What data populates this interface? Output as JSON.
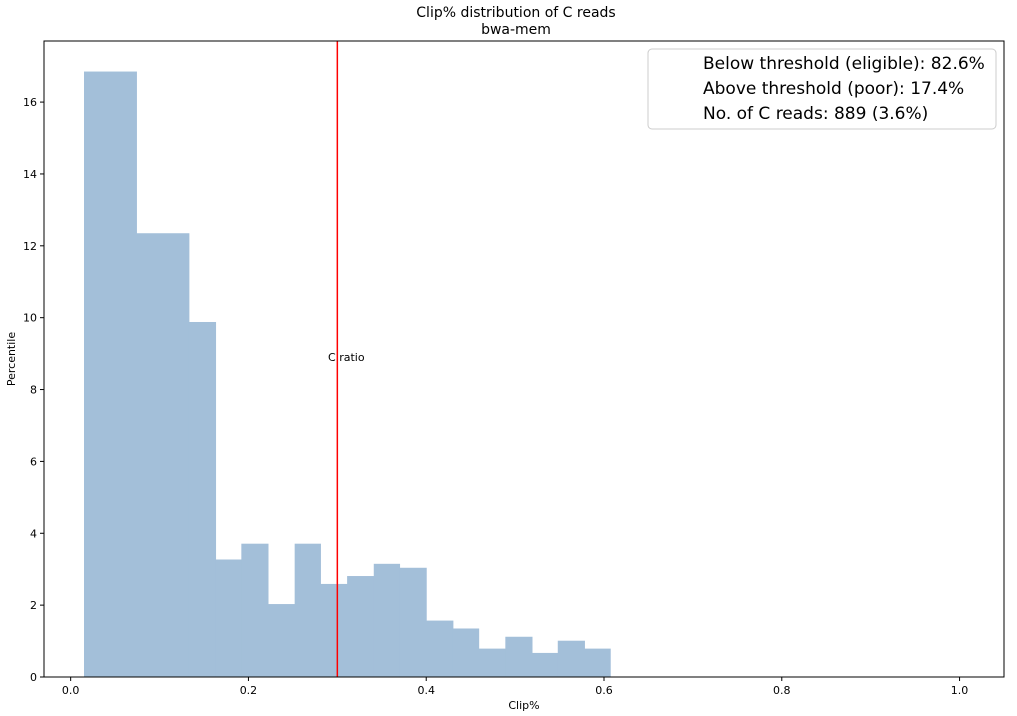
{
  "chart_data": {
    "type": "bar",
    "title": "Clip% distribution of C reads",
    "subtitle": "bwa-mem",
    "xlabel": "Clip%",
    "ylabel": "Percentile",
    "xlim": [
      -0.03,
      1.05
    ],
    "ylim": [
      0,
      17.7
    ],
    "xticks": [
      0.0,
      0.2,
      0.4,
      0.6,
      0.8,
      1.0
    ],
    "xtick_labels": [
      "0.0",
      "0.2",
      "0.4",
      "0.6",
      "0.8",
      "1.0"
    ],
    "yticks": [
      0,
      2,
      4,
      6,
      8,
      10,
      12,
      14,
      16
    ],
    "ytick_labels": [
      "0",
      "2",
      "4",
      "6",
      "8",
      "10",
      "12",
      "14",
      "16"
    ],
    "bar_color": "#a3bfd9",
    "bins": [
      {
        "x0": 0.015,
        "x1": 0.074,
        "value": 16.85
      },
      {
        "x0": 0.074,
        "x1": 0.133,
        "value": 12.35
      },
      {
        "x0": 0.133,
        "x1": 0.163,
        "value": 9.88
      },
      {
        "x0": 0.163,
        "x1": 0.192,
        "value": 3.27
      },
      {
        "x0": 0.192,
        "x1": 0.222,
        "value": 3.71
      },
      {
        "x0": 0.222,
        "x1": 0.252,
        "value": 2.03
      },
      {
        "x0": 0.252,
        "x1": 0.281,
        "value": 3.71
      },
      {
        "x0": 0.281,
        "x1": 0.311,
        "value": 2.59
      },
      {
        "x0": 0.311,
        "x1": 0.341,
        "value": 2.81
      },
      {
        "x0": 0.341,
        "x1": 0.37,
        "value": 3.15
      },
      {
        "x0": 0.37,
        "x1": 0.4,
        "value": 3.04
      },
      {
        "x0": 0.4,
        "x1": 0.43,
        "value": 1.57
      },
      {
        "x0": 0.43,
        "x1": 0.459,
        "value": 1.35
      },
      {
        "x0": 0.459,
        "x1": 0.489,
        "value": 0.79
      },
      {
        "x0": 0.489,
        "x1": 0.519,
        "value": 1.12
      },
      {
        "x0": 0.519,
        "x1": 0.548,
        "value": 0.67
      },
      {
        "x0": 0.548,
        "x1": 0.578,
        "value": 1.01
      },
      {
        "x0": 0.578,
        "x1": 0.607,
        "value": 0.79
      }
    ],
    "threshold": {
      "x": 0.3,
      "color": "#ff0000",
      "label": "C ratio",
      "label_y": 8.9
    },
    "legend": {
      "placement": "top-right",
      "entries": [
        "Below threshold (eligible): 82.6%",
        "Above threshold (poor): 17.4%",
        "No. of C reads: 889 (3.6%)"
      ]
    },
    "grid": false
  }
}
